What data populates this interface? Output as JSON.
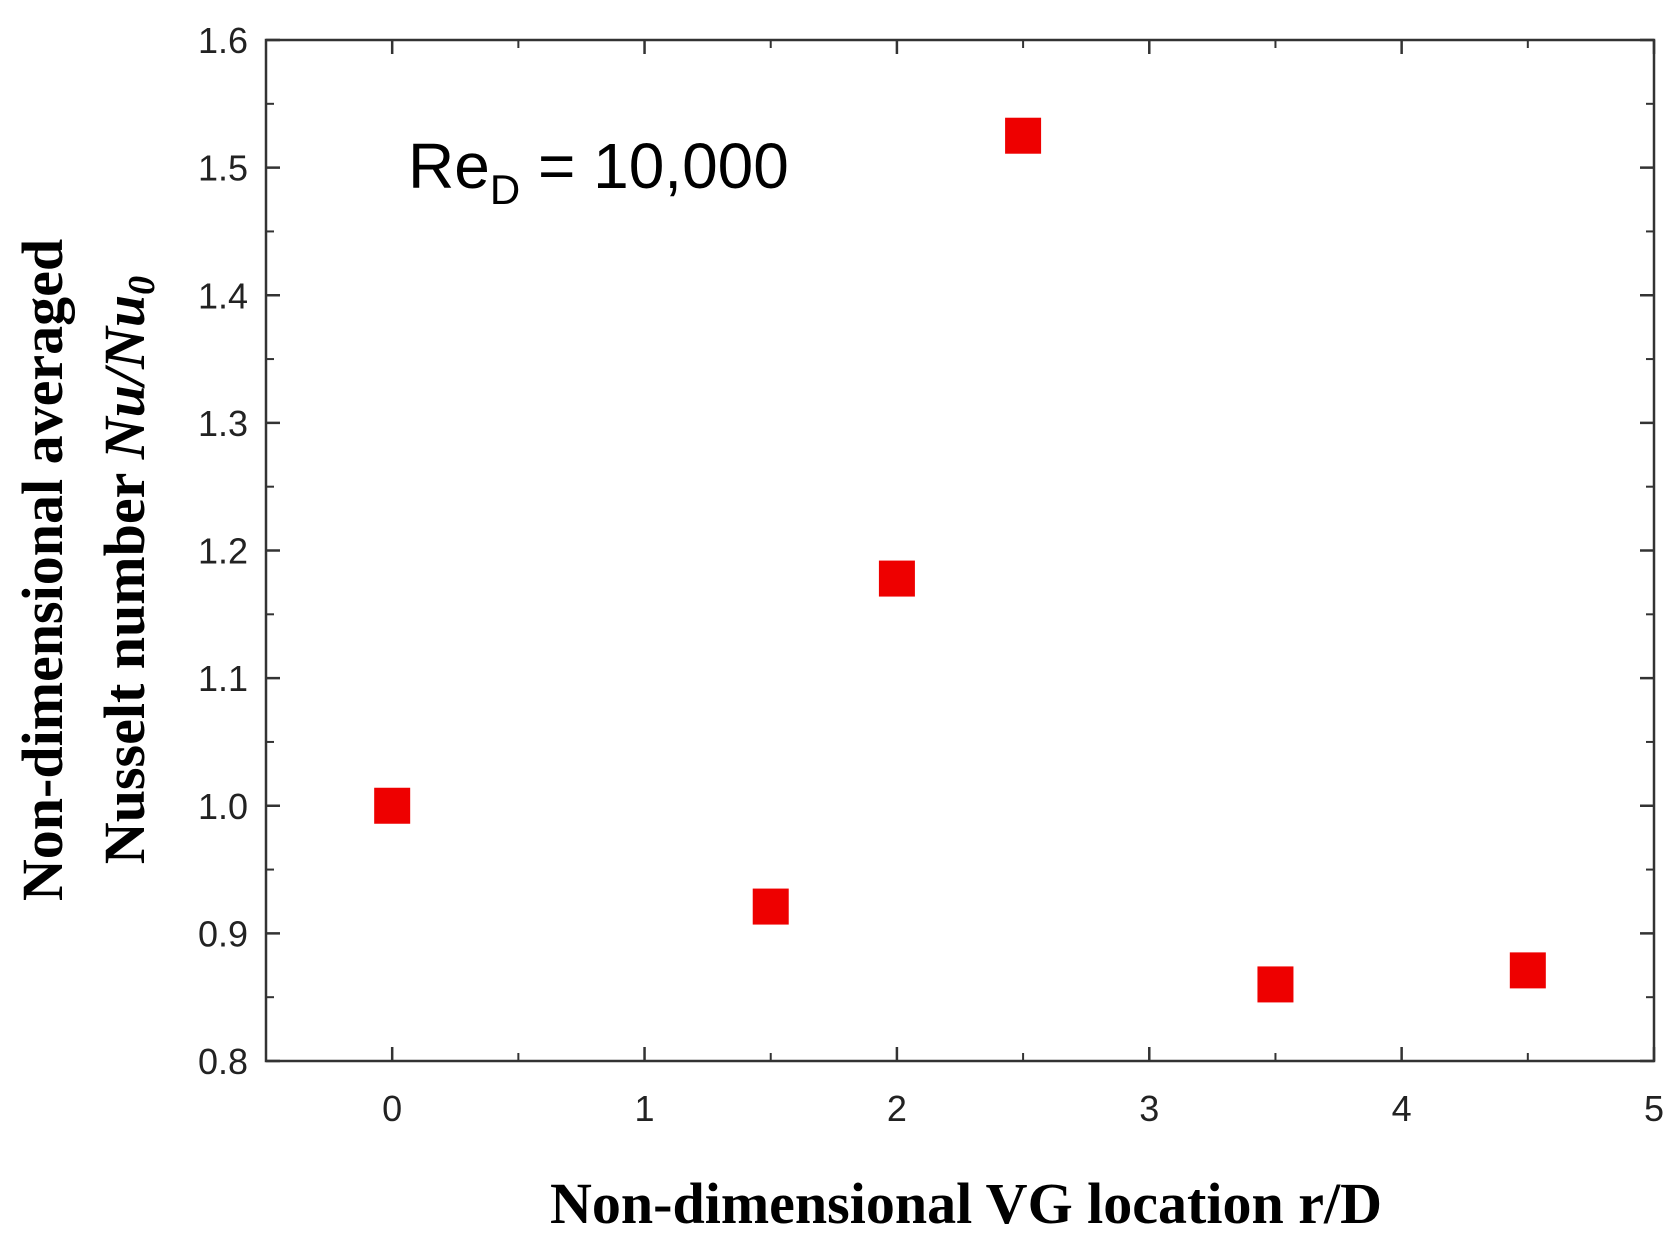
{
  "chart_data": {
    "type": "scatter",
    "title": "",
    "xlabel": "Non-dimensional VG location r/D",
    "ylabel_line1": "Non-dimensional averaged",
    "ylabel_line2_prefix": "Nusselt number ",
    "ylabel_line2_symbol": "Nu/Nu",
    "ylabel_line2_subscript": "0",
    "xlim": [
      -0.5,
      5
    ],
    "ylim": [
      0.8,
      1.6
    ],
    "x_ticks": [
      0,
      1,
      2,
      3,
      4,
      5
    ],
    "x_tick_labels": [
      "0",
      "1",
      "2",
      "3",
      "4",
      "5"
    ],
    "y_ticks": [
      0.8,
      0.9,
      1.0,
      1.1,
      1.2,
      1.3,
      1.4,
      1.5,
      1.6
    ],
    "y_tick_labels": [
      "0.8",
      "0.9",
      "1.0",
      "1.1",
      "1.2",
      "1.3",
      "1.4",
      "1.5",
      "1.6"
    ],
    "grid": false,
    "marker": "square",
    "marker_color": "#ee0000",
    "series": [
      {
        "x": [
          0,
          1.5,
          2,
          2.5,
          3.5,
          4.5
        ],
        "y": [
          1.0,
          0.921,
          1.178,
          1.525,
          0.86,
          0.871
        ]
      }
    ],
    "annotation": {
      "main": "Re",
      "subscript": "D",
      "rest": " = 10,000"
    }
  }
}
